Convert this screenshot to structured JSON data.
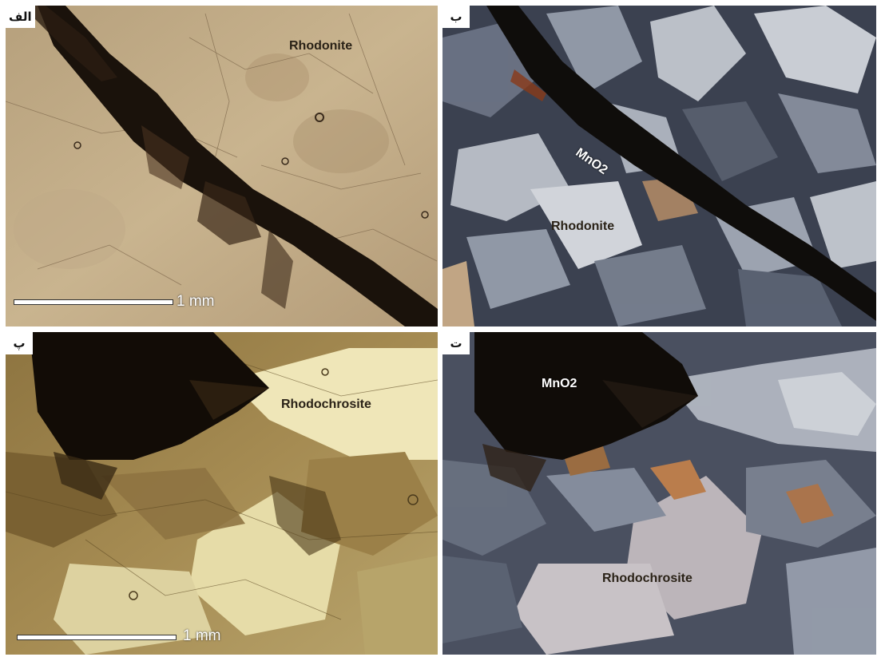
{
  "panels": [
    {
      "tag": "الف",
      "label": "Rhodonite",
      "scale": "1 mm"
    },
    {
      "tag": "ب",
      "label_vein": "MnO2",
      "label_mineral": "Rhodonite"
    },
    {
      "tag": "پ",
      "label": "Rhodochrosite",
      "scale": "1 mm"
    },
    {
      "tag": "ت",
      "label_vein": "MnO2",
      "label_mineral": "Rhodochrosite"
    }
  ]
}
